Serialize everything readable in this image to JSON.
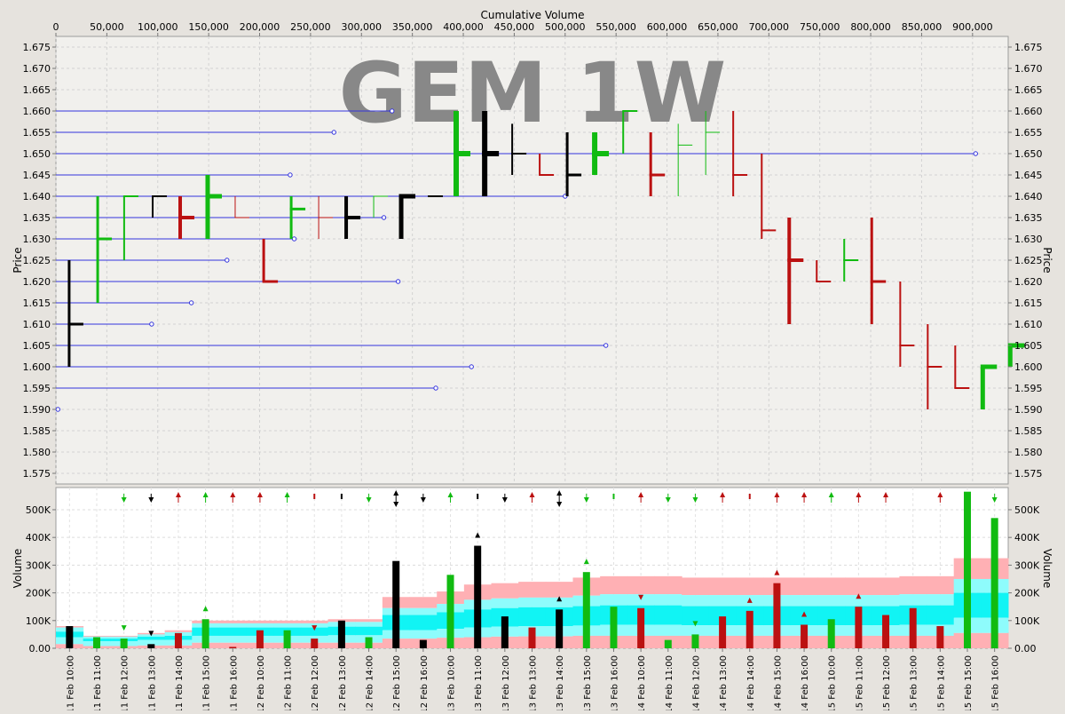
{
  "chart_data": [
    {
      "type": "bar",
      "subtype": "ohlc-price-by-cumulative-volume",
      "title": "GEM 1W",
      "xlabel": "Cumulative Volume",
      "ylabel": "Price",
      "xlim": [
        0,
        935000
      ],
      "ylim": [
        1.5725,
        1.6775
      ],
      "x_ticks": [
        "0",
        "50,000",
        "100,000",
        "150,000",
        "200,000",
        "250,000",
        "300,000",
        "350,000",
        "400,000",
        "450,000",
        "500,000",
        "550,000",
        "600,000",
        "650,000",
        "700,000",
        "750,000",
        "800,000",
        "850,000",
        "900,000"
      ],
      "x_tick_values": [
        0,
        50000,
        100000,
        150000,
        200000,
        250000,
        300000,
        350000,
        400000,
        450000,
        500000,
        550000,
        600000,
        650000,
        700000,
        750000,
        800000,
        850000,
        900000
      ],
      "y_ticks": [
        "1.575",
        "1.580",
        "1.585",
        "1.590",
        "1.595",
        "1.600",
        "1.605",
        "1.610",
        "1.615",
        "1.620",
        "1.625",
        "1.630",
        "1.635",
        "1.640",
        "1.645",
        "1.650",
        "1.655",
        "1.660",
        "1.665",
        "1.670",
        "1.675"
      ],
      "y_tick_values": [
        1.575,
        1.58,
        1.585,
        1.59,
        1.595,
        1.6,
        1.605,
        1.61,
        1.615,
        1.62,
        1.625,
        1.63,
        1.635,
        1.64,
        1.645,
        1.65,
        1.655,
        1.66,
        1.665,
        1.67,
        1.675
      ],
      "grid": true,
      "colors": {
        "up": "#11bb11",
        "down": "#bb1111",
        "neutral": "#000000",
        "level_line": "#3333dd"
      },
      "price_level_lines": [
        {
          "price": 1.66,
          "cum_volume": 330000
        },
        {
          "price": 1.655,
          "cum_volume": 273000
        },
        {
          "price": 1.65,
          "cum_volume": 903000
        },
        {
          "price": 1.645,
          "cum_volume": 230000
        },
        {
          "price": 1.64,
          "cum_volume": 500000
        },
        {
          "price": 1.635,
          "cum_volume": 322000
        },
        {
          "price": 1.63,
          "cum_volume": 234000
        },
        {
          "price": 1.625,
          "cum_volume": 168000
        },
        {
          "price": 1.62,
          "cum_volume": 336000
        },
        {
          "price": 1.615,
          "cum_volume": 133000
        },
        {
          "price": 1.61,
          "cum_volume": 94000
        },
        {
          "price": 1.605,
          "cum_volume": 540000
        },
        {
          "price": 1.6,
          "cum_volume": 408000
        },
        {
          "price": 1.595,
          "cum_volume": 373000
        },
        {
          "price": 1.59,
          "cum_volume": 2000
        }
      ],
      "bars": [
        {
          "x": 13000,
          "w": 3,
          "open": 1.625,
          "high": 1.625,
          "low": 1.6,
          "close": 1.61,
          "dir": "neutral"
        },
        {
          "x": 41000,
          "w": 3,
          "open": 1.63,
          "high": 1.64,
          "low": 1.615,
          "close": 1.63,
          "dir": "up"
        },
        {
          "x": 67000,
          "w": 2,
          "open": 1.625,
          "high": 1.64,
          "low": 1.625,
          "close": 1.64,
          "dir": "up"
        },
        {
          "x": 95000,
          "w": 2,
          "open": 1.635,
          "high": 1.64,
          "low": 1.635,
          "close": 1.64,
          "dir": "neutral"
        },
        {
          "x": 122000,
          "w": 4,
          "open": 1.64,
          "high": 1.64,
          "low": 1.63,
          "close": 1.635,
          "dir": "down"
        },
        {
          "x": 149000,
          "w": 5,
          "open": 1.63,
          "high": 1.645,
          "low": 1.63,
          "close": 1.64,
          "dir": "up"
        },
        {
          "x": 176000,
          "w": 1,
          "open": 1.64,
          "high": 1.64,
          "low": 1.635,
          "close": 1.635,
          "dir": "down"
        },
        {
          "x": 204000,
          "w": 3,
          "open": 1.63,
          "high": 1.63,
          "low": 1.62,
          "close": 1.62,
          "dir": "down"
        },
        {
          "x": 231000,
          "w": 3,
          "open": 1.63,
          "high": 1.64,
          "low": 1.63,
          "close": 1.637,
          "dir": "up"
        },
        {
          "x": 258000,
          "w": 1,
          "open": 1.635,
          "high": 1.64,
          "low": 1.63,
          "close": 1.635,
          "dir": "down"
        },
        {
          "x": 285000,
          "w": 4,
          "open": 1.635,
          "high": 1.64,
          "low": 1.63,
          "close": 1.635,
          "dir": "neutral"
        },
        {
          "x": 312000,
          "w": 1,
          "open": 1.64,
          "high": 1.64,
          "low": 1.635,
          "close": 1.64,
          "dir": "up"
        },
        {
          "x": 339000,
          "w": 5,
          "open": 1.63,
          "high": 1.64,
          "low": 1.63,
          "close": 1.64,
          "dir": "neutral"
        },
        {
          "x": 366000,
          "w": 2,
          "open": 1.64,
          "high": 1.64,
          "low": 1.64,
          "close": 1.64,
          "dir": "neutral"
        },
        {
          "x": 393000,
          "w": 6,
          "open": 1.64,
          "high": 1.66,
          "low": 1.64,
          "close": 1.65,
          "dir": "up"
        },
        {
          "x": 421000,
          "w": 6,
          "open": 1.65,
          "high": 1.66,
          "low": 1.64,
          "close": 1.65,
          "dir": "neutral"
        },
        {
          "x": 448000,
          "w": 2,
          "open": 1.65,
          "high": 1.657,
          "low": 1.645,
          "close": 1.65,
          "dir": "neutral"
        },
        {
          "x": 475000,
          "w": 2,
          "open": 1.65,
          "high": 1.65,
          "low": 1.645,
          "close": 1.645,
          "dir": "down"
        },
        {
          "x": 502000,
          "w": 3,
          "open": 1.64,
          "high": 1.655,
          "low": 1.64,
          "close": 1.645,
          "dir": "neutral"
        },
        {
          "x": 529000,
          "w": 6,
          "open": 1.65,
          "high": 1.655,
          "low": 1.645,
          "close": 1.65,
          "dir": "up"
        },
        {
          "x": 557000,
          "w": 2,
          "open": 1.655,
          "high": 1.66,
          "low": 1.65,
          "close": 1.66,
          "dir": "up"
        },
        {
          "x": 584000,
          "w": 3,
          "open": 1.65,
          "high": 1.655,
          "low": 1.64,
          "close": 1.645,
          "dir": "down"
        },
        {
          "x": 611000,
          "w": 1,
          "open": 1.652,
          "high": 1.657,
          "low": 1.64,
          "close": 1.652,
          "dir": "up"
        },
        {
          "x": 638000,
          "w": 1,
          "open": 1.65,
          "high": 1.66,
          "low": 1.645,
          "close": 1.655,
          "dir": "up"
        },
        {
          "x": 665000,
          "w": 2,
          "open": 1.65,
          "high": 1.66,
          "low": 1.64,
          "close": 1.645,
          "dir": "down"
        },
        {
          "x": 693000,
          "w": 2,
          "open": 1.65,
          "high": 1.65,
          "low": 1.63,
          "close": 1.632,
          "dir": "down"
        },
        {
          "x": 720000,
          "w": 4,
          "open": 1.635,
          "high": 1.635,
          "low": 1.61,
          "close": 1.625,
          "dir": "down"
        },
        {
          "x": 747000,
          "w": 2,
          "open": 1.625,
          "high": 1.625,
          "low": 1.62,
          "close": 1.62,
          "dir": "down"
        },
        {
          "x": 774000,
          "w": 2,
          "open": 1.625,
          "high": 1.63,
          "low": 1.62,
          "close": 1.625,
          "dir": "up"
        },
        {
          "x": 801000,
          "w": 3,
          "open": 1.62,
          "high": 1.635,
          "low": 1.61,
          "close": 1.62,
          "dir": "down"
        },
        {
          "x": 829000,
          "w": 2,
          "open": 1.62,
          "high": 1.62,
          "low": 1.6,
          "close": 1.605,
          "dir": "down"
        },
        {
          "x": 856000,
          "w": 2,
          "open": 1.61,
          "high": 1.61,
          "low": 1.59,
          "close": 1.6,
          "dir": "down"
        },
        {
          "x": 883000,
          "w": 2,
          "open": 1.605,
          "high": 1.605,
          "low": 1.595,
          "close": 1.595,
          "dir": "down"
        },
        {
          "x": 910000,
          "w": 5,
          "open": 1.59,
          "high": 1.6,
          "low": 1.59,
          "close": 1.6,
          "dir": "up"
        },
        {
          "x": 937000,
          "w": 5,
          "open": 1.6,
          "high": 1.605,
          "low": 1.6,
          "close": 1.605,
          "dir": "up"
        }
      ]
    },
    {
      "type": "bar",
      "subtype": "volume-with-bands",
      "ylabel": "Volume",
      "ylim": [
        0,
        580000
      ],
      "y_ticks": [
        "0.00",
        "100K",
        "200K",
        "300K",
        "400K",
        "500K"
      ],
      "y_tick_values": [
        0,
        100000,
        200000,
        300000,
        400000,
        500000
      ],
      "categories": [
        "11 Feb 10:00",
        "11 Feb 11:00",
        "11 Feb 12:00",
        "11 Feb 13:00",
        "11 Feb 14:00",
        "11 Feb 15:00",
        "11 Feb 16:00",
        "12 Feb 10:00",
        "12 Feb 11:00",
        "12 Feb 12:00",
        "12 Feb 13:00",
        "12 Feb 14:00",
        "12 Feb 15:00",
        "12 Feb 16:00",
        "13 Feb 10:00",
        "13 Feb 11:00",
        "13 Feb 12:00",
        "13 Feb 13:00",
        "13 Feb 14:00",
        "13 Feb 15:00",
        "13 Feb 16:00",
        "14 Feb 10:00",
        "14 Feb 11:00",
        "14 Feb 12:00",
        "14 Feb 13:00",
        "14 Feb 14:00",
        "14 Feb 15:00",
        "14 Feb 16:00",
        "15 Feb 10:00",
        "15 Feb 11:00",
        "15 Feb 12:00",
        "15 Feb 13:00",
        "15 Feb 14:00",
        "15 Feb 15:00",
        "15 Feb 16:00"
      ],
      "values": [
        80000,
        40000,
        35000,
        15000,
        55000,
        105000,
        5000,
        65000,
        65000,
        35000,
        100000,
        40000,
        315000,
        30000,
        265000,
        370000,
        115000,
        75000,
        140000,
        275000,
        150000,
        145000,
        30000,
        50000,
        115000,
        135000,
        235000,
        85000,
        105000,
        150000,
        120000,
        145000,
        80000,
        565000,
        470000
      ],
      "bar_colors": [
        "neutral",
        "up",
        "up",
        "neutral",
        "down",
        "up",
        "down",
        "down",
        "up",
        "down",
        "neutral",
        "up",
        "neutral",
        "neutral",
        "up",
        "neutral",
        "neutral",
        "down",
        "neutral",
        "up",
        "up",
        "down",
        "up",
        "up",
        "down",
        "down",
        "down",
        "down",
        "up",
        "down",
        "down",
        "down",
        "down",
        "up",
        "up"
      ],
      "markers": [
        "",
        "",
        "down",
        "down",
        "",
        "up",
        "",
        "",
        "",
        "down",
        "",
        "",
        "",
        "",
        "",
        "up",
        "",
        "",
        "up",
        "up",
        "",
        "down",
        "",
        "down",
        "",
        "up",
        "up",
        "up",
        "",
        "up",
        "",
        "",
        "",
        "",
        ""
      ],
      "header_marks": [
        "",
        "",
        "down",
        "down",
        "up",
        "up",
        "up",
        "up",
        "up",
        "bar",
        "bar",
        "down",
        "both",
        "down",
        "up",
        "bar",
        "down",
        "up",
        "both",
        "down",
        "bar",
        "up",
        "down",
        "down",
        "up",
        "bar",
        "up",
        "up",
        "up",
        "up",
        "up",
        "",
        "up",
        "bar",
        "down"
      ],
      "bands": [
        {
          "hi": 80000,
          "c2": 75000,
          "m1": 60000,
          "m2": 40000,
          "lo": 15000
        },
        {
          "hi": 45000,
          "c2": 42000,
          "m1": 35000,
          "m2": 25000,
          "lo": 8000
        },
        {
          "hi": 45000,
          "c2": 42000,
          "m1": 35000,
          "m2": 25000,
          "lo": 8000
        },
        {
          "hi": 55000,
          "c2": 50000,
          "m1": 42000,
          "m2": 30000,
          "lo": 10000
        },
        {
          "hi": 65000,
          "c2": 58000,
          "m1": 45000,
          "m2": 30000,
          "lo": 10000
        },
        {
          "hi": 100000,
          "c2": 90000,
          "m1": 75000,
          "m2": 45000,
          "lo": 20000
        },
        {
          "hi": 100000,
          "c2": 90000,
          "m1": 75000,
          "m2": 45000,
          "lo": 20000
        },
        {
          "hi": 100000,
          "c2": 90000,
          "m1": 75000,
          "m2": 45000,
          "lo": 20000
        },
        {
          "hi": 100000,
          "c2": 90000,
          "m1": 75000,
          "m2": 45000,
          "lo": 20000
        },
        {
          "hi": 100000,
          "c2": 90000,
          "m1": 75000,
          "m2": 45000,
          "lo": 20000
        },
        {
          "hi": 105000,
          "c2": 95000,
          "m1": 78000,
          "m2": 47000,
          "lo": 20000
        },
        {
          "hi": 105000,
          "c2": 95000,
          "m1": 78000,
          "m2": 47000,
          "lo": 20000
        },
        {
          "hi": 185000,
          "c2": 145000,
          "m1": 120000,
          "m2": 65000,
          "lo": 35000
        },
        {
          "hi": 185000,
          "c2": 145000,
          "m1": 120000,
          "m2": 65000,
          "lo": 35000
        },
        {
          "hi": 205000,
          "c2": 160000,
          "m1": 130000,
          "m2": 70000,
          "lo": 38000
        },
        {
          "hi": 230000,
          "c2": 175000,
          "m1": 140000,
          "m2": 75000,
          "lo": 40000
        },
        {
          "hi": 235000,
          "c2": 180000,
          "m1": 145000,
          "m2": 78000,
          "lo": 42000
        },
        {
          "hi": 240000,
          "c2": 183000,
          "m1": 148000,
          "m2": 80000,
          "lo": 43000
        },
        {
          "hi": 240000,
          "c2": 183000,
          "m1": 148000,
          "m2": 80000,
          "lo": 43000
        },
        {
          "hi": 255000,
          "c2": 190000,
          "m1": 152000,
          "m2": 82000,
          "lo": 45000
        },
        {
          "hi": 260000,
          "c2": 195000,
          "m1": 155000,
          "m2": 85000,
          "lo": 45000
        },
        {
          "hi": 260000,
          "c2": 195000,
          "m1": 155000,
          "m2": 85000,
          "lo": 45000
        },
        {
          "hi": 260000,
          "c2": 195000,
          "m1": 155000,
          "m2": 85000,
          "lo": 45000
        },
        {
          "hi": 255000,
          "c2": 192000,
          "m1": 152000,
          "m2": 83000,
          "lo": 45000
        },
        {
          "hi": 255000,
          "c2": 192000,
          "m1": 152000,
          "m2": 83000,
          "lo": 45000
        },
        {
          "hi": 255000,
          "c2": 192000,
          "m1": 152000,
          "m2": 83000,
          "lo": 45000
        },
        {
          "hi": 255000,
          "c2": 192000,
          "m1": 152000,
          "m2": 83000,
          "lo": 45000
        },
        {
          "hi": 255000,
          "c2": 192000,
          "m1": 152000,
          "m2": 83000,
          "lo": 45000
        },
        {
          "hi": 255000,
          "c2": 192000,
          "m1": 152000,
          "m2": 83000,
          "lo": 45000
        },
        {
          "hi": 255000,
          "c2": 192000,
          "m1": 152000,
          "m2": 83000,
          "lo": 45000
        },
        {
          "hi": 255000,
          "c2": 192000,
          "m1": 152000,
          "m2": 83000,
          "lo": 45000
        },
        {
          "hi": 260000,
          "c2": 195000,
          "m1": 155000,
          "m2": 85000,
          "lo": 45000
        },
        {
          "hi": 260000,
          "c2": 195000,
          "m1": 155000,
          "m2": 85000,
          "lo": 45000
        },
        {
          "hi": 325000,
          "c2": 250000,
          "m1": 200000,
          "m2": 110000,
          "lo": 55000
        },
        {
          "hi": 325000,
          "c2": 250000,
          "m1": 200000,
          "m2": 110000,
          "lo": 55000
        }
      ]
    }
  ]
}
